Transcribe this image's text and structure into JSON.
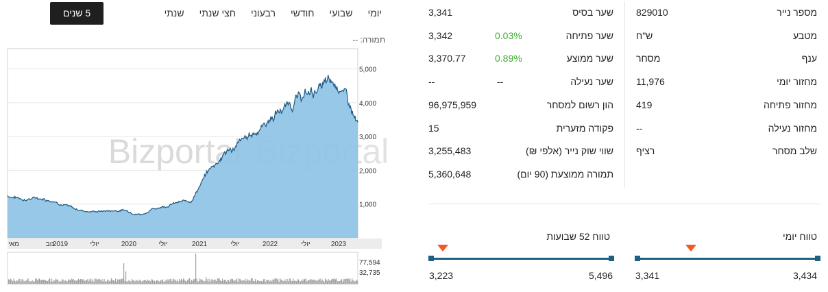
{
  "period_tabs": [
    "יומי",
    "שבועי",
    "חודשי",
    "רבעוני",
    "חצי שנתי",
    "שנתי",
    "5 שנים"
  ],
  "active_tab": "5 שנים",
  "turnover": {
    "label": "תמורה:",
    "value": "--"
  },
  "watermark": "Bizportal",
  "chart_data": {
    "type": "area",
    "y_ticks": [
      "5,000",
      "4,000",
      "3,000",
      "2,000",
      "1,000"
    ],
    "x_ticks": [
      "מאי",
      "נוב",
      "2019",
      "יולי",
      "2020",
      "יולי",
      "2021",
      "יולי",
      "2022",
      "יולי",
      "2023"
    ],
    "volume_ticks": [
      "77,594",
      "32,735"
    ],
    "x": [
      "2018-05",
      "2018-08",
      "2018-11",
      "2019-02",
      "2019-05",
      "2019-08",
      "2019-11",
      "2020-02",
      "2020-05",
      "2020-08",
      "2020-11",
      "2021-02",
      "2021-05",
      "2021-08",
      "2021-11",
      "2022-02",
      "2022-05",
      "2022-08",
      "2022-11",
      "2023-02",
      "2023-05",
      "2023-06"
    ],
    "series": [
      {
        "values": [
          1250,
          1150,
          1180,
          1080,
          850,
          780,
          800,
          820,
          700,
          900,
          1020,
          1100,
          1950,
          2500,
          2800,
          3200,
          3650,
          4000,
          4250,
          4500,
          4500,
          3300
        ]
      }
    ],
    "ylim": [
      0,
      5600
    ],
    "grid": true
  },
  "col_right": [
    {
      "label": "מספר נייר",
      "value": "829010"
    },
    {
      "label": "מטבע",
      "value": "ש\"ח"
    },
    {
      "label": "ענף",
      "value": "מסחר"
    },
    {
      "label": "מחזור יומי",
      "value": "11,976"
    },
    {
      "label": "מחזור פתיחה",
      "value": "419"
    },
    {
      "label": "מחזור נעילה",
      "value": "--"
    },
    {
      "label": "שלב מסחר",
      "value": "רציף"
    }
  ],
  "col_mid": [
    {
      "label": "שער בסיס",
      "value": "3,341",
      "change": ""
    },
    {
      "label": "שער פתיחה",
      "value": "3,342",
      "change": "0.03%"
    },
    {
      "label": "שער ממוצע",
      "value": "3,370.77",
      "change": "0.89%"
    },
    {
      "label": "שער נעילה",
      "value": "--",
      "change": "--"
    },
    {
      "label": "הון רשום למסחר",
      "value": "96,975,959",
      "change": ""
    },
    {
      "label": "פקודה מזערית",
      "value": "15",
      "change": ""
    },
    {
      "label": "שווי שוק נייר (אלפי ₪)",
      "value": "3,255,483",
      "change": ""
    },
    {
      "label": "תמורה ממוצעת (90 יום)",
      "value": "5,360,648",
      "change": ""
    }
  ],
  "range_daily": {
    "title": "טווח יומי",
    "low": "3,341",
    "high": "3,434",
    "position": 0.3
  },
  "range_52w": {
    "title": "טווח 52 שבועות",
    "low": "3,223",
    "high": "5,496",
    "position": 0.07
  },
  "colors": {
    "area": "#8fc3e6",
    "line": "#1c5a82",
    "accent": "#ef5a24",
    "track": "#1f5f82",
    "green": "#3aae2a"
  }
}
